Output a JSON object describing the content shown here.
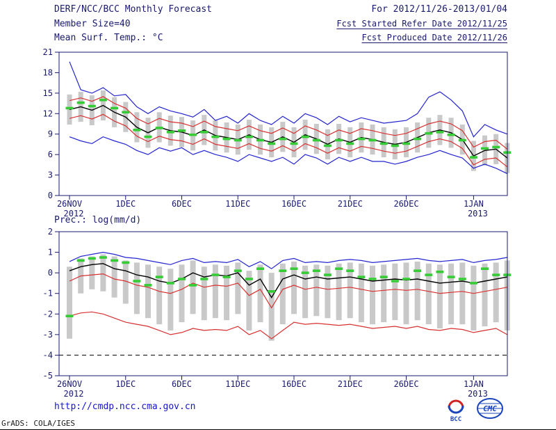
{
  "header": {
    "title": "DERF/NCC/BCC Monthly Forecast",
    "for_range": "For 2012/11/26-2013/01/04",
    "member_size": "Member Size=40",
    "refer_date": "Fcst Started Refer Date 2012/11/25",
    "produced_date": "Fcst Produced Date 2012/11/26"
  },
  "footer": {
    "url": "http://cmdp.ncc.cma.gov.cn",
    "credit": "GrADS: COLA/IGES",
    "logo1_text": "BCC",
    "logo2_text": "CMC"
  },
  "colors": {
    "background": "#ffffff",
    "text": "#191970",
    "blue": "#2424d0",
    "red": "#d83030",
    "black": "#000000",
    "obs_dash": "#35cc35",
    "bar": "#c9c9c9",
    "link": "#1515cc",
    "logo_blue": "#1a44bb",
    "logo_red": "#d02020"
  },
  "chart_data": [
    {
      "type": "line",
      "title": "Mean Surf. Temp.: °C",
      "n_days": 40,
      "ylim": [
        0,
        21
      ],
      "yticks": [
        0,
        3,
        6,
        9,
        12,
        15,
        18,
        21
      ],
      "x_ticks": [
        {
          "day": 0,
          "label": "26NOV",
          "sub": "2012"
        },
        {
          "day": 5,
          "label": "1DEC"
        },
        {
          "day": 10,
          "label": "6DEC"
        },
        {
          "day": 15,
          "label": "11DEC"
        },
        {
          "day": 20,
          "label": "16DEC"
        },
        {
          "day": 25,
          "label": "21DEC"
        },
        {
          "day": 30,
          "label": "26DEC"
        },
        {
          "day": 36,
          "label": "1JAN",
          "sub": "2013"
        }
      ],
      "series": [
        {
          "name": "ensemble-max",
          "color": "blue",
          "width": 1.2,
          "values": [
            19.6,
            15.5,
            15.0,
            15.8,
            14.6,
            14.8,
            13.0,
            12.0,
            13.0,
            12.4,
            12.0,
            11.5,
            12.6,
            11.0,
            11.6,
            10.6,
            12.0,
            11.0,
            10.4,
            11.6,
            10.6,
            12.0,
            11.4,
            10.4,
            11.6,
            10.8,
            11.4,
            11.0,
            10.6,
            10.8,
            11.0,
            12.0,
            14.4,
            15.2,
            14.0,
            12.4,
            8.6,
            10.4,
            9.6,
            9.0
          ]
        },
        {
          "name": "ensemble-min",
          "color": "blue",
          "width": 1.2,
          "values": [
            8.6,
            8.0,
            7.6,
            8.6,
            8.0,
            7.5,
            6.6,
            6.0,
            7.0,
            6.5,
            7.0,
            6.0,
            6.6,
            6.0,
            5.6,
            5.0,
            6.0,
            5.5,
            5.0,
            5.6,
            4.6,
            6.0,
            5.5,
            4.6,
            5.6,
            5.0,
            5.6,
            5.0,
            5.0,
            4.6,
            5.0,
            5.6,
            6.0,
            6.6,
            6.0,
            5.5,
            4.0,
            4.6,
            4.0,
            3.2
          ]
        },
        {
          "name": "upper-quartile",
          "color": "red",
          "width": 1.2,
          "values": [
            13.9,
            14.3,
            13.8,
            14.5,
            13.5,
            12.8,
            11.3,
            10.5,
            11.3,
            10.8,
            10.6,
            10.1,
            10.9,
            10.1,
            9.8,
            9.5,
            10.2,
            9.5,
            9.1,
            9.9,
            9.1,
            10.2,
            9.6,
            8.8,
            9.6,
            9.1,
            9.8,
            9.5,
            9.1,
            8.8,
            9.1,
            9.8,
            10.5,
            10.9,
            10.5,
            9.5,
            7.1,
            7.9,
            8.1,
            6.8
          ]
        },
        {
          "name": "lower-quartile",
          "color": "red",
          "width": 1.2,
          "values": [
            11.3,
            11.7,
            11.2,
            11.9,
            10.9,
            10.2,
            8.7,
            7.9,
            8.7,
            8.2,
            8.0,
            7.5,
            8.3,
            7.5,
            7.2,
            6.9,
            7.6,
            6.9,
            6.5,
            7.3,
            6.5,
            7.6,
            7.0,
            6.2,
            7.0,
            6.5,
            7.2,
            6.9,
            6.5,
            6.2,
            6.5,
            7.2,
            7.9,
            8.3,
            7.9,
            6.9,
            4.5,
            5.3,
            5.5,
            4.2
          ]
        },
        {
          "name": "ensemble-mean",
          "color": "black",
          "width": 1.4,
          "values": [
            12.6,
            13.0,
            12.5,
            13.2,
            12.2,
            11.5,
            10.0,
            9.2,
            10.0,
            9.5,
            9.3,
            8.8,
            9.6,
            8.8,
            8.5,
            8.2,
            8.9,
            8.2,
            7.8,
            8.6,
            7.8,
            8.9,
            8.3,
            7.5,
            8.3,
            7.8,
            8.5,
            8.2,
            7.8,
            7.5,
            7.8,
            8.5,
            9.2,
            9.6,
            9.2,
            8.2,
            5.8,
            6.6,
            6.8,
            5.5
          ]
        }
      ],
      "obs": [
        12.8,
        13.6,
        13.1,
        14.0,
        12.8,
        12.2,
        9.6,
        8.6,
        9.9,
        9.3,
        9.5,
        8.9,
        9.3,
        8.6,
        8.3,
        8.1,
        8.6,
        8.1,
        7.6,
        8.3,
        7.6,
        8.6,
        8.1,
        7.3,
        8.1,
        7.6,
        8.3,
        8.1,
        7.6,
        7.3,
        7.6,
        8.3,
        9.1,
        9.3,
        8.9,
        8.1,
        5.6,
        6.9,
        7.1,
        6.3
      ],
      "bars": {
        "low": [
          10.4,
          10.8,
          10.3,
          11.0,
          10.0,
          9.3,
          7.8,
          7.0,
          7.8,
          7.3,
          7.1,
          6.6,
          7.4,
          6.6,
          6.3,
          6.0,
          6.7,
          6.0,
          5.6,
          6.4,
          5.6,
          6.7,
          6.1,
          5.3,
          6.1,
          5.6,
          6.3,
          6.0,
          5.6,
          5.3,
          5.6,
          6.3,
          7.0,
          7.4,
          7.0,
          6.0,
          3.6,
          4.4,
          4.6,
          3.3
        ],
        "high": [
          14.8,
          15.2,
          14.7,
          15.4,
          14.4,
          13.7,
          12.2,
          11.4,
          12.2,
          11.7,
          11.5,
          11.0,
          11.8,
          11.0,
          10.7,
          10.4,
          11.1,
          10.4,
          10.0,
          10.8,
          10.0,
          11.1,
          10.5,
          9.7,
          10.5,
          10.0,
          10.7,
          10.4,
          10.0,
          9.7,
          10.0,
          10.7,
          11.4,
          11.8,
          11.4,
          10.4,
          8.0,
          8.8,
          9.0,
          7.7
        ]
      }
    },
    {
      "type": "line",
      "title": "Prec.: log(mm/d)",
      "n_days": 40,
      "ylim": [
        -5,
        2
      ],
      "yticks": [
        -5,
        -4,
        -3,
        -2,
        -1,
        0,
        1,
        2
      ],
      "ref_line": -4,
      "x_ticks": [
        {
          "day": 0,
          "label": "26NOV",
          "sub": "2012"
        },
        {
          "day": 5,
          "label": "1DEC"
        },
        {
          "day": 10,
          "label": "6DEC"
        },
        {
          "day": 15,
          "label": "11DEC"
        },
        {
          "day": 20,
          "label": "16DEC"
        },
        {
          "day": 25,
          "label": "21DEC"
        },
        {
          "day": 30,
          "label": "26DEC"
        },
        {
          "day": 36,
          "label": "1JAN",
          "sub": "2013"
        }
      ],
      "series": [
        {
          "name": "ensemble-max",
          "color": "blue",
          "width": 1.2,
          "values": [
            0.55,
            0.8,
            0.9,
            1.0,
            0.9,
            0.75,
            0.7,
            0.6,
            0.5,
            0.4,
            0.6,
            0.7,
            0.5,
            0.55,
            0.5,
            0.65,
            0.3,
            0.55,
            0.2,
            0.6,
            0.7,
            0.5,
            0.55,
            0.5,
            0.6,
            0.65,
            0.6,
            0.5,
            0.55,
            0.6,
            0.65,
            0.7,
            0.6,
            0.55,
            0.6,
            0.65,
            0.5,
            0.6,
            0.65,
            0.75
          ]
        },
        {
          "name": "upper-quartile",
          "color": "red",
          "width": 1.2,
          "values": [
            -0.4,
            -0.15,
            -0.1,
            -0.05,
            -0.3,
            -0.4,
            -0.6,
            -0.7,
            -0.9,
            -1.0,
            -0.8,
            -0.5,
            -0.7,
            -0.6,
            -0.65,
            -0.5,
            -1.1,
            -0.8,
            -1.7,
            -0.8,
            -0.6,
            -0.8,
            -0.7,
            -0.8,
            -0.75,
            -0.7,
            -0.8,
            -0.9,
            -0.85,
            -0.8,
            -0.85,
            -0.8,
            -0.9,
            -1.0,
            -0.95,
            -0.9,
            -1.0,
            -0.9,
            -0.8,
            -0.7
          ]
        },
        {
          "name": "lower-quartile",
          "color": "red",
          "width": 1.2,
          "values": [
            -2.1,
            -1.95,
            -1.9,
            -2.0,
            -2.2,
            -2.4,
            -2.5,
            -2.6,
            -2.8,
            -3.0,
            -2.9,
            -2.7,
            -2.8,
            -2.75,
            -2.8,
            -2.6,
            -3.0,
            -2.8,
            -3.2,
            -2.8,
            -2.4,
            -2.5,
            -2.45,
            -2.5,
            -2.55,
            -2.5,
            -2.6,
            -2.7,
            -2.65,
            -2.6,
            -2.7,
            -2.6,
            -2.75,
            -2.8,
            -2.7,
            -2.75,
            -2.9,
            -2.8,
            -2.7,
            -3.0
          ]
        },
        {
          "name": "ensemble-mean",
          "color": "black",
          "width": 1.4,
          "values": [
            0.1,
            0.3,
            0.4,
            0.45,
            0.2,
            0.1,
            -0.1,
            -0.2,
            -0.4,
            -0.5,
            -0.3,
            0.0,
            -0.2,
            -0.1,
            -0.15,
            0.0,
            -0.6,
            -0.3,
            -1.2,
            -0.3,
            -0.1,
            -0.3,
            -0.2,
            -0.3,
            -0.25,
            -0.2,
            -0.3,
            -0.4,
            -0.35,
            -0.3,
            -0.35,
            -0.3,
            -0.4,
            -0.5,
            -0.45,
            -0.4,
            -0.5,
            -0.4,
            -0.3,
            -0.2
          ]
        }
      ],
      "obs": [
        -2.1,
        0.6,
        0.7,
        0.75,
        0.6,
        0.5,
        -0.4,
        -0.6,
        -0.2,
        -0.5,
        -0.3,
        -0.6,
        -0.3,
        -0.1,
        -0.2,
        0.1,
        -0.3,
        0.2,
        -0.9,
        0.1,
        0.2,
        0.0,
        0.1,
        -0.1,
        0.2,
        0.1,
        -0.2,
        -0.3,
        -0.2,
        -0.4,
        -0.3,
        0.1,
        -0.1,
        0.05,
        -0.2,
        -0.3,
        -0.5,
        0.2,
        -0.1,
        -0.1
      ],
      "bars": {
        "low": [
          -3.2,
          -1.0,
          -0.8,
          -0.9,
          -1.2,
          -1.5,
          -2.0,
          -2.2,
          -2.5,
          -2.8,
          -2.4,
          -2.0,
          -2.3,
          -2.2,
          -2.3,
          -2.0,
          -2.8,
          -2.4,
          -3.3,
          -2.5,
          -2.0,
          -2.2,
          -2.1,
          -2.2,
          -2.3,
          -2.2,
          -2.4,
          -2.5,
          -2.4,
          -2.3,
          -2.5,
          -2.3,
          -2.5,
          -2.7,
          -2.5,
          -2.5,
          -2.8,
          -2.6,
          -2.4,
          -2.8
        ],
        "high": [
          0.3,
          0.7,
          0.8,
          0.9,
          0.8,
          0.6,
          0.5,
          0.4,
          0.3,
          0.2,
          0.4,
          0.6,
          0.3,
          0.4,
          0.35,
          0.5,
          0.1,
          0.4,
          0.0,
          0.45,
          0.55,
          0.35,
          0.4,
          0.35,
          0.45,
          0.5,
          0.45,
          0.35,
          0.4,
          0.45,
          0.5,
          0.55,
          0.45,
          0.4,
          0.45,
          0.5,
          0.35,
          0.45,
          0.5,
          0.6
        ]
      }
    }
  ]
}
